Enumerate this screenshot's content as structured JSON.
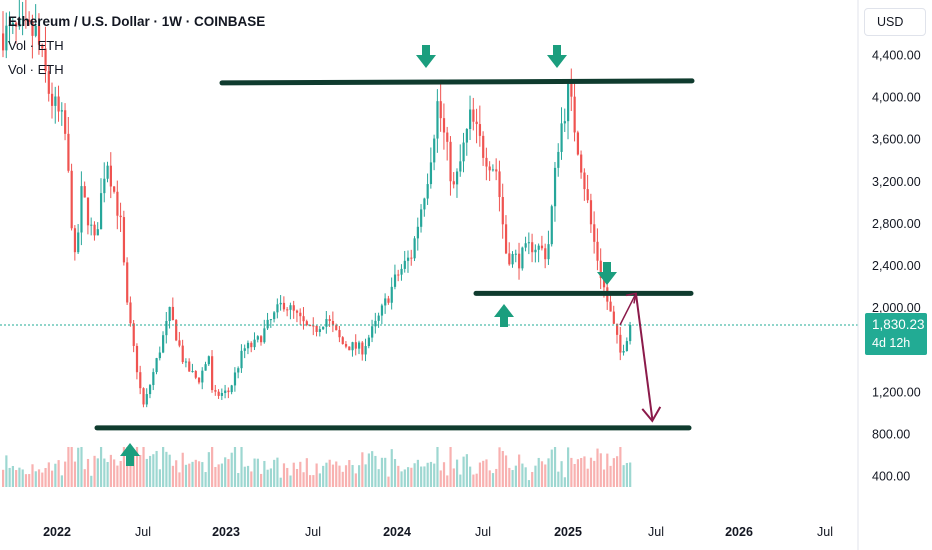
{
  "header": {
    "title": "Ethereum / U.S. Dollar · 1W · COINBASE",
    "vol_label_1": "Vol · ETH",
    "vol_label_2": "Vol · ETH"
  },
  "price_axis": {
    "currency": "USD",
    "ticks": [
      "4,400.00",
      "4,000.00",
      "3,600.00",
      "3,200.00",
      "2,800.00",
      "2,400.00",
      "2,000.00",
      "1,200.00",
      "800.00",
      "400.00"
    ]
  },
  "current": {
    "price": "1,830.23",
    "countdown": "4d 12h"
  },
  "time_axis": {
    "ticks": [
      "2022",
      "Jul",
      "2023",
      "Jul",
      "2024",
      "Jul",
      "2025",
      "Jul",
      "2026",
      "Jul"
    ]
  },
  "colors": {
    "up": "#26a69a",
    "down": "#ef5350",
    "line": "#0f3b2e",
    "arrow": "#1b9e7e",
    "projection": "#8b1a4a"
  },
  "chart_data": {
    "type": "candlestick",
    "title": "Ethereum / U.S. Dollar · 1W · COINBASE",
    "ylim": [
      400,
      4700
    ],
    "y_ticks": [
      400,
      800,
      1200,
      2000,
      2400,
      2800,
      3200,
      3600,
      4000,
      4400
    ],
    "x_range": [
      "2021-10",
      "2026-09"
    ],
    "x_ticks": [
      "2022",
      "Jul",
      "2023",
      "Jul",
      "2024",
      "Jul",
      "2025",
      "Jul",
      "2026",
      "Jul"
    ],
    "close_path": [
      [
        "2021-11-01",
        4600
      ],
      [
        "2021-12-01",
        4000
      ],
      [
        "2022-01-01",
        3700
      ],
      [
        "2022-01-24",
        2400
      ],
      [
        "2022-02-07",
        3100
      ],
      [
        "2022-03-07",
        2600
      ],
      [
        "2022-04-01",
        3450
      ],
      [
        "2022-05-01",
        2800
      ],
      [
        "2022-05-15",
        2000
      ],
      [
        "2022-06-13",
        1200
      ],
      [
        "2022-06-20",
        1050
      ],
      [
        "2022-07-18",
        1500
      ],
      [
        "2022-08-15",
        1950
      ],
      [
        "2022-09-15",
        1450
      ],
      [
        "2022-10-15",
        1300
      ],
      [
        "2022-11-07",
        1550
      ],
      [
        "2022-11-14",
        1150
      ],
      [
        "2022-12-20",
        1200
      ],
      [
        "2023-01-20",
        1600
      ],
      [
        "2023-02-15",
        1650
      ],
      [
        "2023-04-15",
        2050
      ],
      [
        "2023-06-15",
        1750
      ],
      [
        "2023-07-15",
        1900
      ],
      [
        "2023-08-20",
        1650
      ],
      [
        "2023-10-01",
        1600
      ],
      [
        "2023-11-01",
        1850
      ],
      [
        "2023-12-15",
        2300
      ],
      [
        "2024-01-15",
        2500
      ],
      [
        "2024-02-20",
        3300
      ],
      [
        "2024-03-11",
        3950
      ],
      [
        "2024-04-15",
        3100
      ],
      [
        "2024-05-20",
        3800
      ],
      [
        "2024-06-15",
        3500
      ],
      [
        "2024-07-15",
        3300
      ],
      [
        "2024-08-05",
        2500
      ],
      [
        "2024-09-01",
        2450
      ],
      [
        "2024-10-01",
        2600
      ],
      [
        "2024-11-01",
        2500
      ],
      [
        "2024-11-25",
        3600
      ],
      [
        "2024-12-16",
        4050
      ],
      [
        "2025-01-15",
        3300
      ],
      [
        "2025-02-05",
        2700
      ],
      [
        "2025-03-01",
        2200
      ],
      [
        "2025-04-07",
        1550
      ],
      [
        "2025-04-28",
        1830
      ]
    ],
    "last_price": 1830.23,
    "annotations": {
      "resistance_level": 4130,
      "mid_level": 2130,
      "support_level": 900,
      "projection": [
        [
          "2025-05-12",
          2130
        ],
        [
          "2025-06-16",
          900
        ]
      ]
    }
  }
}
